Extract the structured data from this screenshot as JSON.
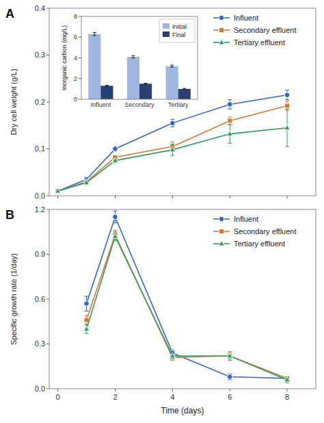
{
  "chart_data": [
    {
      "type": "line",
      "title": "A",
      "ylabel": "Dry cell weight (g/L)",
      "x": [
        0,
        1,
        2,
        4,
        6,
        8
      ],
      "series": [
        {
          "name": "Influent",
          "color": "#3366cc",
          "marker": "circle",
          "values": [
            0.01,
            0.035,
            0.1,
            0.155,
            0.195,
            0.215
          ],
          "errors": [
            0.003,
            0.005,
            0.005,
            0.008,
            0.01,
            0.01
          ]
        },
        {
          "name": "Secondary effluent",
          "color": "#dc7633",
          "marker": "square",
          "values": [
            0.01,
            0.03,
            0.082,
            0.105,
            0.16,
            0.192
          ],
          "errors": [
            0.002,
            0.004,
            0.005,
            0.01,
            0.008,
            0.01
          ]
        },
        {
          "name": "Tertiary effluent",
          "color": "#2e9d5b",
          "marker": "triangle",
          "values": [
            0.01,
            0.028,
            0.075,
            0.098,
            0.132,
            0.145
          ],
          "errors": [
            0.002,
            0.004,
            0.005,
            0.012,
            0.02,
            0.04
          ]
        }
      ],
      "xlim": [
        -0.3,
        9
      ],
      "xticks": [
        0,
        2,
        4,
        6,
        8
      ],
      "ylim": [
        0.0,
        0.4
      ],
      "yticks": [
        {
          "value": 0,
          "label": "0.0"
        },
        0.1,
        0.2,
        0.3,
        0.4
      ],
      "tick_labels": "y",
      "legend": "upper right"
    },
    {
      "type": "line",
      "title": "B",
      "xlabel": "Time (days)",
      "ylabel": "Specific growth rate (1/day)",
      "x": [
        1,
        2,
        4,
        6,
        8
      ],
      "series": [
        {
          "name": "Influent",
          "color": "#3366cc",
          "marker": "circle",
          "values": [
            0.57,
            1.15,
            0.24,
            0.08,
            0.07
          ],
          "errors": [
            0.05,
            0.04,
            0.02,
            0.02,
            0.01
          ]
        },
        {
          "name": "Secondary effluent",
          "color": "#dc7633",
          "marker": "square",
          "values": [
            0.46,
            1.03,
            0.21,
            0.22,
            0.07
          ],
          "errors": [
            0.03,
            0.03,
            0.02,
            0.03,
            0.01
          ]
        },
        {
          "name": "Tertiary effluent",
          "color": "#2e9d5b",
          "marker": "triangle",
          "values": [
            0.4,
            1.02,
            0.22,
            0.22,
            0.06
          ],
          "errors": [
            0.03,
            0.03,
            0.02,
            0.02,
            0.02
          ]
        }
      ],
      "xlim": [
        -0.3,
        9
      ],
      "xticks": [
        0,
        2,
        4,
        6,
        8
      ],
      "ylim": [
        0.0,
        1.2
      ],
      "yticks": [
        {
          "value": 0,
          "label": "0.0"
        },
        0.3,
        0.6,
        0.9,
        1.2
      ],
      "legend": "upper right"
    },
    {
      "type": "bar",
      "ylabel": "Inorganic carbon (mg/L)",
      "categories": [
        "Influent",
        "Secondary",
        "Tertiary"
      ],
      "series": [
        {
          "name": "Initial",
          "color": "#9fb6e0",
          "values": [
            6.3,
            4.1,
            3.2
          ],
          "errors": [
            0.15,
            0.12,
            0.1
          ]
        },
        {
          "name": "Final",
          "color": "#2b3f73",
          "values": [
            1.3,
            1.5,
            1.0
          ],
          "errors": [
            0.05,
            0.05,
            0.05
          ]
        }
      ],
      "ylim": [
        0,
        8
      ],
      "yticks": [
        0,
        2,
        4,
        6,
        8
      ],
      "legend": "upper right"
    }
  ]
}
